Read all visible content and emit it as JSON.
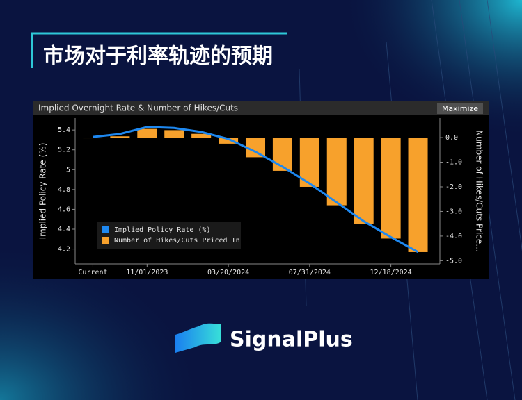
{
  "header": {
    "title": "市场对于利率轨迹的预期"
  },
  "panel": {
    "button": "Maximize"
  },
  "brand": {
    "name": "SignalPlus"
  },
  "chart_data": {
    "type": "combo",
    "title": "Implied Overnight Rate & Number of Hikes/Cuts",
    "y_label": "Implied Policy Rate (%)",
    "y2_label": "Number of Hikes/Cuts Price...",
    "categories": [
      "Current",
      null,
      "11/01/2023",
      null,
      null,
      "03/20/2024",
      null,
      null,
      "07/31/2024",
      null,
      null,
      "12/18/2024",
      null
    ],
    "series": [
      {
        "name": "Implied Policy Rate (%)",
        "type": "line",
        "color": "#1e88f0",
        "axis": "y",
        "values": [
          5.33,
          5.36,
          5.43,
          5.42,
          5.38,
          5.31,
          5.18,
          5.03,
          4.86,
          4.67,
          4.48,
          4.32,
          4.17
        ]
      },
      {
        "name": "Number of Hikes/Cuts Priced In",
        "type": "bar",
        "color": "#f7a12c",
        "axis": "y2",
        "values": [
          0.0,
          0.05,
          0.35,
          0.3,
          0.15,
          -0.25,
          -0.8,
          -1.35,
          -2.0,
          -2.75,
          -3.5,
          -4.1,
          -4.65
        ]
      }
    ],
    "ylim": [
      4.05,
      5.52
    ],
    "yticks": [
      4.2,
      4.4,
      4.6,
      4.8,
      5.0,
      5.2,
      5.4
    ],
    "y2lim": [
      -5.13,
      0.79
    ],
    "y2ticks": [
      {
        "value": 0,
        "label": "0.0"
      },
      {
        "value": -1,
        "label": "-1.0"
      },
      {
        "value": -2,
        "label": "-2.0"
      },
      {
        "value": -3,
        "label": "-3.0"
      },
      {
        "value": -4,
        "label": "-4.0"
      },
      {
        "value": -5,
        "label": "-5.0"
      }
    ]
  }
}
